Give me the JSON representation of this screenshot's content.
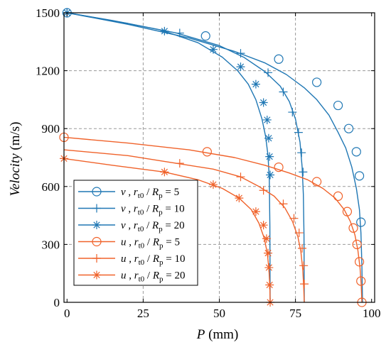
{
  "chart_data": {
    "type": "line",
    "xlabel": {
      "var": "P",
      "unit": " (mm)"
    },
    "ylabel": {
      "var": "Velocity",
      "unit": " (m/s)"
    },
    "xlim": [
      -1,
      101
    ],
    "ylim": [
      0,
      1500
    ],
    "xticks": [
      "0",
      "25",
      "50",
      "75",
      "100"
    ],
    "xtick_values": [
      0,
      25,
      50,
      75,
      100
    ],
    "yticks": [
      "0",
      "300",
      "600",
      "900",
      "1200",
      "1500"
    ],
    "ytick_values": [
      0,
      300,
      600,
      900,
      1200,
      1500
    ],
    "grid": true,
    "legend_position": "lower-left",
    "colors": {
      "v": "#1f77b4",
      "u": "#f0622a"
    },
    "series": [
      {
        "name": {
          "var": "v",
          "sub1": "t0",
          "sub2": "p",
          "rhs": "= 5"
        },
        "color": "#1f77b4",
        "marker": "circle",
        "x": [
          0,
          20,
          40,
          55,
          65,
          72,
          78,
          82,
          86,
          89,
          91.5,
          93.5,
          95,
          96,
          96.5,
          96.8,
          97
        ],
        "y": [
          1500,
          1440,
          1370,
          1300,
          1240,
          1180,
          1110,
          1050,
          970,
          880,
          800,
          700,
          590,
          480,
          360,
          200,
          0
        ],
        "mx": [
          0,
          45.5,
          69.5,
          82,
          89,
          92.5,
          95,
          96,
          96.5
        ],
        "my": [
          1500,
          1380,
          1260,
          1140,
          1020,
          900,
          780,
          655,
          415
        ]
      },
      {
        "name": {
          "var": "v",
          "sub1": "t0",
          "sub2": "p",
          "rhs": "= 10"
        },
        "color": "#1f77b4",
        "marker": "plus",
        "x": [
          0,
          20,
          36,
          50,
          58,
          65,
          70,
          73,
          75,
          76.5,
          77.2,
          77.6,
          77.8,
          77.9
        ],
        "y": [
          1500,
          1445,
          1395,
          1330,
          1270,
          1195,
          1120,
          1040,
          950,
          830,
          700,
          560,
          350,
          0
        ],
        "mx": [
          0,
          37,
          57,
          66,
          71,
          74,
          76,
          77,
          77.5
        ],
        "my": [
          1500,
          1395,
          1290,
          1190,
          1090,
          985,
          880,
          775,
          675
        ]
      },
      {
        "name": {
          "var": "v",
          "sub1": "t0",
          "sub2": "p",
          "rhs": "= 20"
        },
        "color": "#1f77b4",
        "marker": "asterisk",
        "x": [
          0,
          15,
          31,
          43,
          51,
          56,
          59.5,
          62,
          64,
          65.2,
          66,
          66.4,
          66.6,
          66.7
        ],
        "y": [
          1500,
          1460,
          1410,
          1345,
          1270,
          1200,
          1130,
          1050,
          950,
          860,
          760,
          640,
          400,
          0
        ],
        "mx": [
          0,
          32,
          48,
          57,
          62,
          64.5,
          65.7,
          66.2,
          66.5,
          66.7
        ],
        "my": [
          1500,
          1405,
          1310,
          1220,
          1130,
          1035,
          945,
          850,
          755,
          660
        ]
      },
      {
        "name": {
          "var": "u",
          "sub1": "t0",
          "sub2": "p",
          "rhs": "= 5"
        },
        "color": "#f0622a",
        "marker": "circle",
        "x": [
          -1,
          20,
          40,
          55,
          65,
          73,
          79,
          84,
          88,
          91,
          93,
          94.5,
          95.5,
          96.2,
          96.6,
          96.8
        ],
        "y": [
          855,
          825,
          790,
          750,
          710,
          670,
          635,
          590,
          540,
          480,
          420,
          350,
          270,
          180,
          90,
          0
        ],
        "mx": [
          -1,
          46,
          69.5,
          82,
          89,
          92,
          94,
          95.2,
          96,
          96.5,
          96.8
        ],
        "my": [
          855,
          780,
          700,
          625,
          550,
          470,
          385,
          300,
          210,
          110,
          0
        ]
      },
      {
        "name": {
          "var": "u",
          "sub1": "t0",
          "sub2": "p",
          "rhs": "= 10"
        },
        "color": "#f0622a",
        "marker": "plus",
        "x": [
          -1,
          20,
          36,
          48,
          57,
          63,
          68,
          71.5,
          74,
          75.8,
          76.8,
          77.4,
          77.7,
          77.9
        ],
        "y": [
          790,
          760,
          720,
          690,
          650,
          600,
          550,
          490,
          420,
          340,
          260,
          170,
          80,
          0
        ],
        "mx": [
          37,
          57,
          64.5,
          71,
          74.5,
          76.2,
          77.2,
          77.7,
          77.9
        ],
        "my": [
          720,
          650,
          580,
          510,
          435,
          360,
          280,
          190,
          95
        ]
      },
      {
        "name": {
          "var": "u",
          "sub1": "t0",
          "sub2": "p",
          "rhs": "= 20"
        },
        "color": "#f0622a",
        "marker": "asterisk",
        "x": [
          -1,
          15,
          32,
          43,
          51,
          56.5,
          60.5,
          63,
          64.8,
          65.8,
          66.3,
          66.6,
          66.7
        ],
        "y": [
          745,
          710,
          675,
          635,
          590,
          540,
          480,
          410,
          330,
          250,
          170,
          80,
          0
        ],
        "mx": [
          -1,
          32,
          48,
          56.5,
          62,
          64.5,
          65.5,
          66,
          66.3,
          66.5,
          66.7
        ],
        "my": [
          745,
          675,
          610,
          540,
          470,
          400,
          330,
          255,
          180,
          90,
          0
        ]
      }
    ]
  }
}
